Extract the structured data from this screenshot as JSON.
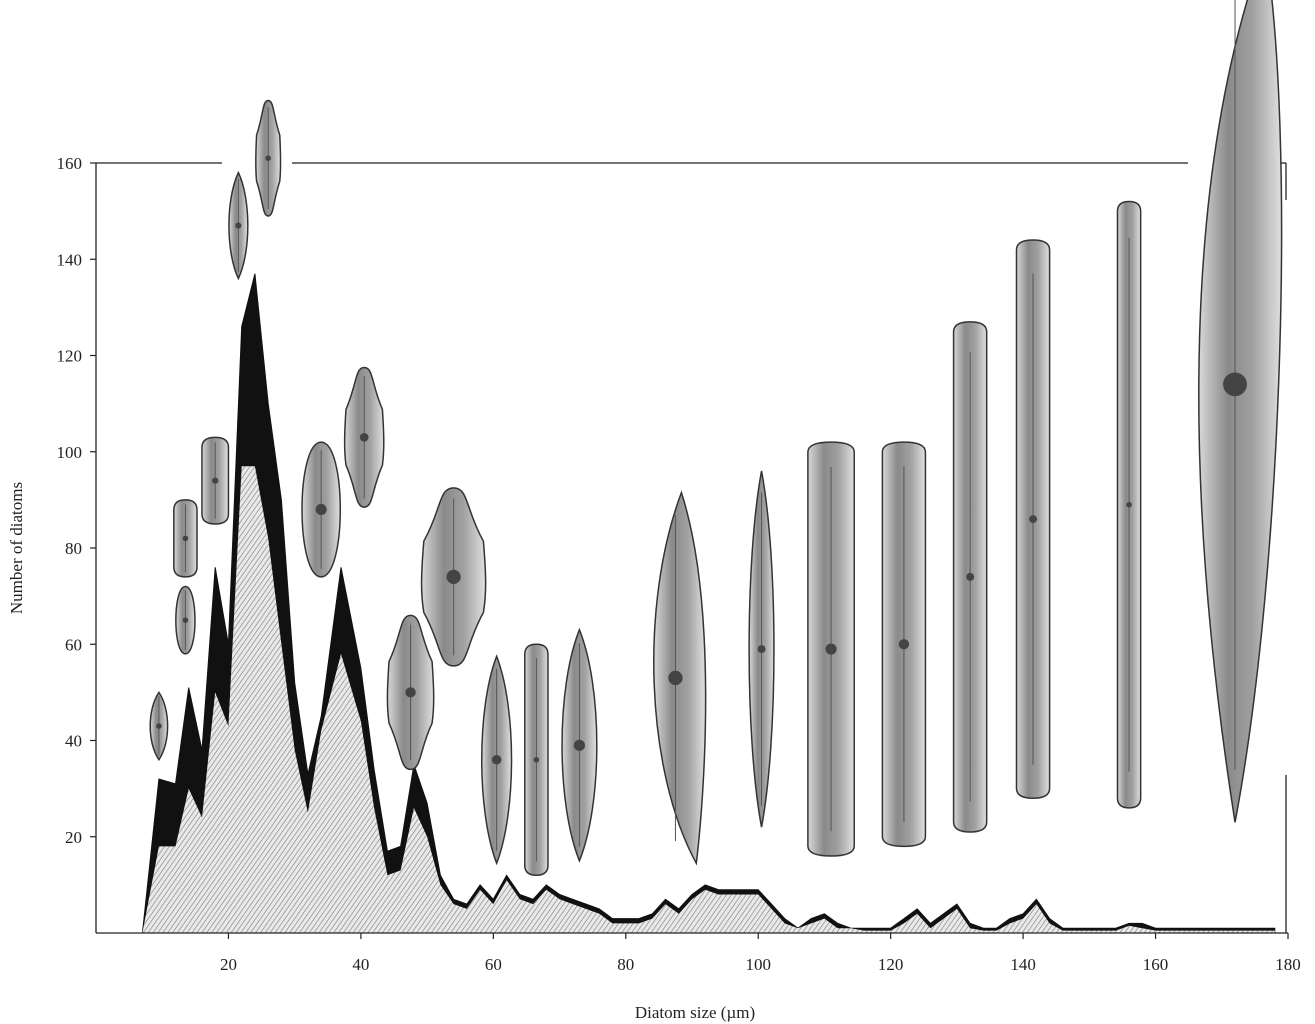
{
  "chart_data": {
    "type": "area",
    "title": "",
    "xlabel": "Diatom size (µm)",
    "ylabel": "Number of diatoms",
    "xlim": [
      0,
      180
    ],
    "ylim": [
      0,
      160
    ],
    "x_ticks": [
      20,
      40,
      60,
      80,
      100,
      120,
      140,
      160,
      180
    ],
    "y_ticks": [
      20,
      40,
      60,
      80,
      100,
      120,
      140,
      160
    ],
    "grid": false,
    "legend": "none",
    "x": [
      7,
      9.5,
      12,
      14,
      16,
      18,
      20,
      22,
      24,
      26,
      28,
      30,
      32,
      34,
      37,
      40,
      42,
      44,
      46,
      48,
      50,
      52,
      54,
      56,
      58,
      60,
      62,
      64,
      66,
      68,
      70,
      72,
      74,
      76,
      78,
      80,
      82,
      84,
      86,
      88,
      90,
      92,
      94,
      96,
      98,
      100,
      102,
      104,
      106,
      108,
      110,
      112,
      114,
      116,
      118,
      120,
      122,
      124,
      126,
      128,
      130,
      132,
      134,
      136,
      138,
      140,
      142,
      144,
      146,
      148,
      150,
      152,
      154,
      156,
      158,
      160,
      162,
      164,
      166,
      168,
      170,
      172,
      174,
      176,
      178
    ],
    "series": [
      {
        "values": [
          0,
          32,
          31,
          51,
          38,
          76,
          60,
          126,
          137,
          110,
          90,
          52,
          33,
          45,
          76,
          55,
          34,
          17,
          18,
          35,
          27,
          12,
          7,
          6,
          10,
          7,
          12,
          8,
          7,
          10,
          8,
          7,
          6,
          5,
          3,
          3,
          3,
          4,
          7,
          5,
          8,
          10,
          9,
          9,
          9,
          9,
          6,
          3,
          1,
          3,
          4,
          2,
          1,
          1,
          1,
          1,
          3,
          5,
          2,
          4,
          6,
          2,
          1,
          1,
          3,
          4,
          7,
          3,
          1,
          1,
          1,
          1,
          1,
          2,
          2,
          1,
          1,
          1,
          1,
          1,
          1,
          1,
          1,
          1,
          1
        ],
        "color": "#111111"
      },
      {
        "values": [
          0,
          18,
          18,
          30,
          24,
          50,
          43,
          97,
          97,
          82,
          60,
          38,
          25,
          42,
          58,
          44,
          26,
          12,
          13,
          26,
          20,
          10,
          6,
          5,
          9,
          6,
          11,
          7,
          6,
          9,
          7,
          6,
          5,
          4,
          2,
          2,
          2,
          3,
          6,
          4,
          7,
          9,
          8,
          8,
          8,
          8,
          5,
          2,
          1,
          2,
          3,
          1,
          1,
          0.5,
          0.5,
          0.5,
          2,
          4,
          1,
          3,
          5,
          1,
          0.5,
          0.5,
          2,
          3,
          6,
          2,
          0.5,
          0.5,
          0.5,
          0.5,
          0.5,
          1.5,
          1,
          0.5,
          0.5,
          0.5,
          0.5,
          0.5,
          0.5,
          0.5,
          0.5,
          0.5,
          0.5
        ],
        "color": "#aaaaaa"
      }
    ],
    "cell_images": [
      {
        "x": 9.5,
        "y": 43,
        "w": 3.5,
        "h": 14,
        "shape": "lanceolate"
      },
      {
        "x": 13.5,
        "y": 65,
        "w": 3.5,
        "h": 14,
        "shape": "elliptic"
      },
      {
        "x": 13.5,
        "y": 82,
        "w": 3.5,
        "h": 16,
        "shape": "linear"
      },
      {
        "x": 18,
        "y": 94,
        "w": 4,
        "h": 18,
        "shape": "linear"
      },
      {
        "x": 21.5,
        "y": 147,
        "w": 3.8,
        "h": 22,
        "shape": "lanceolate"
      },
      {
        "x": 26,
        "y": 161,
        "w": 3.5,
        "h": 24,
        "shape": "capitate"
      },
      {
        "x": 34,
        "y": 88,
        "w": 7,
        "h": 28,
        "shape": "elliptic"
      },
      {
        "x": 40.5,
        "y": 103,
        "w": 5.5,
        "h": 29,
        "shape": "capitate"
      },
      {
        "x": 47.5,
        "y": 50,
        "w": 6.5,
        "h": 32,
        "shape": "capitate"
      },
      {
        "x": 54,
        "y": 74,
        "w": 9,
        "h": 37,
        "shape": "capitate"
      },
      {
        "x": 60.5,
        "y": 36,
        "w": 6,
        "h": 43,
        "shape": "lanceolate"
      },
      {
        "x": 66.5,
        "y": 36,
        "w": 3.5,
        "h": 48,
        "shape": "linear"
      },
      {
        "x": 73,
        "y": 39,
        "w": 7,
        "h": 48,
        "shape": "lanceolate"
      },
      {
        "x": 87.5,
        "y": 53,
        "w": 9,
        "h": 77,
        "shape": "lunate"
      },
      {
        "x": 100.5,
        "y": 59,
        "w": 5,
        "h": 74,
        "shape": "lanceolate"
      },
      {
        "x": 111,
        "y": 59,
        "w": 7,
        "h": 86,
        "shape": "linear"
      },
      {
        "x": 122,
        "y": 60,
        "w": 6.5,
        "h": 84,
        "shape": "linear"
      },
      {
        "x": 132,
        "y": 74,
        "w": 5,
        "h": 106,
        "shape": "linear"
      },
      {
        "x": 141.5,
        "y": 86,
        "w": 5,
        "h": 116,
        "shape": "linear"
      },
      {
        "x": 156,
        "y": 89,
        "w": 3.5,
        "h": 126,
        "shape": "linear"
      },
      {
        "x": 172,
        "y": 114,
        "w": 15,
        "h": 182,
        "shape": "sigmoid"
      }
    ]
  }
}
